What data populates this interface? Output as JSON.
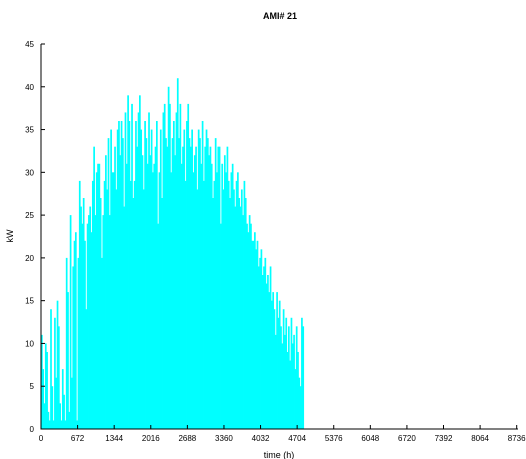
{
  "chart_data": {
    "type": "bar",
    "title": "AMI# 21",
    "xlabel": "time (h)",
    "ylabel": "kW",
    "xlim": [
      0,
      8760
    ],
    "ylim": [
      0,
      45
    ],
    "xticks": [
      0,
      672,
      1344,
      2016,
      2688,
      3360,
      4032,
      4704,
      5376,
      6048,
      6720,
      7392,
      8064,
      8736
    ],
    "yticks": [
      0,
      5,
      10,
      15,
      20,
      25,
      30,
      35,
      40,
      45
    ],
    "grid": false,
    "series": [
      {
        "color": "#00ffff",
        "sampling_step_hours": 24,
        "description": "daily peak kW (approximate, read from envelope)",
        "values": [
          11,
          7,
          3,
          10,
          9,
          2,
          1,
          14,
          5,
          1,
          13,
          6,
          15,
          12,
          3,
          1,
          7,
          4,
          1,
          20,
          16,
          2,
          25,
          6,
          19,
          22,
          23,
          1,
          20,
          29,
          26,
          24,
          27,
          22,
          14,
          24,
          25,
          26,
          23,
          29,
          33,
          25,
          30,
          31,
          31,
          27,
          20,
          25,
          29,
          32,
          28,
          34,
          25,
          35,
          30,
          30,
          33,
          28,
          35,
          36,
          32,
          36,
          34,
          26,
          37,
          31,
          39,
          36,
          29,
          38,
          27,
          29,
          36,
          33,
          37,
          39,
          35,
          32,
          28,
          36,
          34,
          31,
          37,
          32,
          35,
          30,
          31,
          33,
          36,
          24,
          30,
          35,
          27,
          37,
          38,
          34,
          33,
          40,
          38,
          30,
          34,
          36,
          32,
          37,
          41,
          34,
          38,
          31,
          33,
          35,
          29,
          36,
          38,
          34,
          33,
          35,
          30,
          32,
          33,
          28,
          35,
          34,
          31,
          36,
          29,
          33,
          35,
          34,
          32,
          33,
          31,
          27,
          29,
          34,
          30,
          33,
          33,
          24,
          31,
          28,
          32,
          30,
          33,
          29,
          27,
          30,
          31,
          28,
          26,
          29,
          30,
          27,
          26,
          28,
          25,
          29,
          27,
          24,
          23,
          25,
          24,
          22,
          22,
          23,
          21,
          22,
          19,
          20,
          21,
          18,
          19,
          20,
          17,
          18,
          16,
          19,
          15,
          16,
          14,
          11,
          16,
          13,
          15,
          12,
          10,
          14,
          11,
          13,
          9,
          12,
          8,
          13,
          10,
          11,
          7,
          12,
          9,
          6,
          5,
          13,
          12
        ]
      }
    ]
  }
}
